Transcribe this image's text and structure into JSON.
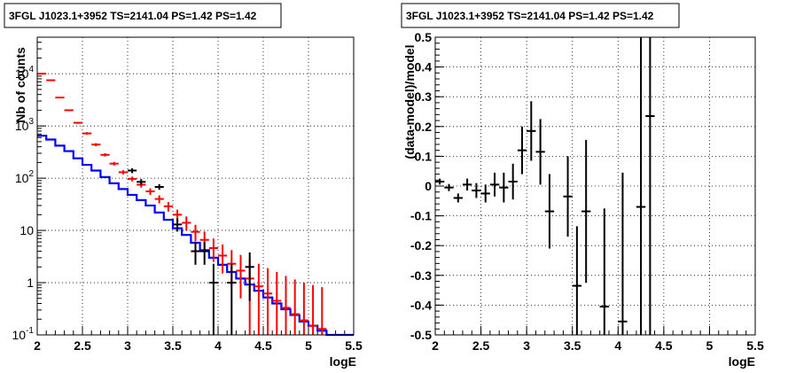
{
  "chart_data": [
    {
      "type": "line",
      "title": "3FGL J1023.1+3952 TS=2141.04 PS=1.42 PS=1.42",
      "xlabel": "logE",
      "ylabel": "Nb of counts",
      "xlim": [
        2,
        5.5
      ],
      "ylim": [
        0.1,
        50000
      ],
      "y_scale": "log",
      "grid": true,
      "x_ticks": [
        "2",
        "2.5",
        "3",
        "3.5",
        "4",
        "4.5",
        "5",
        "5.5"
      ],
      "y_ticks": [
        {
          "value": 0.1,
          "label": "10",
          "exp": "-1"
        },
        {
          "value": 1,
          "label": "1",
          "exp": ""
        },
        {
          "value": 10,
          "label": "10",
          "exp": ""
        },
        {
          "value": 100,
          "label": "10",
          "exp": "2"
        },
        {
          "value": 1000,
          "label": "10",
          "exp": "3"
        },
        {
          "value": 10000,
          "label": "10",
          "exp": "4"
        }
      ],
      "bin_edges": [
        2.0,
        2.1,
        2.2,
        2.3,
        2.4,
        2.5,
        2.6,
        2.7,
        2.8,
        2.9,
        3.0,
        3.1,
        3.2,
        3.3,
        3.4,
        3.5,
        3.6,
        3.7,
        3.8,
        3.9,
        4.0,
        4.1,
        4.2,
        4.3,
        4.4,
        4.5,
        4.6,
        4.7,
        4.8,
        4.9,
        5.0,
        5.1,
        5.2,
        5.3,
        5.4,
        5.5
      ],
      "series": [
        {
          "kind": "step",
          "color": "#0000ff",
          "values": [
            650,
            550,
            420,
            330,
            240,
            180,
            140,
            105,
            80,
            62,
            48,
            38,
            30,
            22,
            16,
            11,
            8.2,
            5.8,
            4.2,
            3.0,
            2.2,
            1.6,
            1.2,
            0.92,
            0.7,
            0.52,
            0.4,
            0.31,
            0.24,
            0.18,
            0.15,
            0.12,
            0.1,
            0.1,
            0.1
          ]
        },
        {
          "kind": "errorbars",
          "color": "#ff0000",
          "x": [
            2.05,
            2.15,
            2.25,
            2.35,
            2.45,
            2.55,
            2.65,
            2.75,
            2.85,
            2.95,
            3.05,
            3.15,
            3.25,
            3.35,
            3.45,
            3.55,
            3.65,
            3.75,
            3.85,
            3.95,
            4.05,
            4.15,
            4.25,
            4.35,
            4.45,
            4.55,
            4.65,
            4.75,
            4.85,
            4.95,
            5.05,
            5.15
          ],
          "y": [
            10000,
            7500,
            3500,
            2000,
            1150,
            720,
            440,
            280,
            190,
            130,
            97,
            75,
            56,
            40,
            29,
            20,
            14,
            9.4,
            6.6,
            4.6,
            3.3,
            2.3,
            1.7,
            1.2,
            0.85,
            0.62,
            0.45,
            0.33,
            0.25,
            0.19,
            0.15,
            0.13
          ],
          "ylow": [
            9800,
            7350,
            3400,
            1930,
            1100,
            680,
            410,
            260,
            175,
            118,
            87,
            66,
            48,
            33,
            23,
            15,
            10,
            6.2,
            4.0,
            2.5,
            1.5,
            0.9,
            0.5,
            0.1,
            0.1,
            0.1,
            0.1,
            0.1,
            0.1,
            0.1,
            0.1,
            0.1
          ],
          "yhigh": [
            10200,
            7650,
            3600,
            2070,
            1200,
            760,
            470,
            300,
            205,
            142,
            107,
            84,
            64,
            47,
            35,
            25,
            18.5,
            12.8,
            9.5,
            7.0,
            5.4,
            4.2,
            3.4,
            2.8,
            2.3,
            1.9,
            1.6,
            1.35,
            1.15,
            1.0,
            0.9,
            0.82
          ]
        },
        {
          "kind": "errorbars",
          "color": "#000000",
          "x": [
            3.05,
            3.15,
            3.35,
            3.55,
            3.75,
            3.85,
            3.95,
            4.15,
            4.35
          ],
          "y": [
            140,
            85,
            68,
            13,
            4,
            4,
            1,
            1,
            2
          ],
          "ylow": [
            125,
            75,
            60,
            9.5,
            2.2,
            2.2,
            0.1,
            0.1,
            0.45
          ],
          "yhigh": [
            155,
            96,
            77,
            17,
            6,
            6,
            2.3,
            2.3,
            3.8
          ]
        }
      ]
    },
    {
      "type": "scatter",
      "title": "3FGL J1023.1+3952 TS=2141.04 PS=1.42 PS=1.42",
      "xlabel": "logE",
      "ylabel": "(data-model)/model",
      "xlim": [
        2,
        5.5
      ],
      "ylim": [
        -0.5,
        0.5
      ],
      "grid": true,
      "x_ticks": [
        "2",
        "2.5",
        "3",
        "3.5",
        "4",
        "4.5",
        "5",
        "5.5"
      ],
      "y_ticks": [
        "-0.5",
        "-0.4",
        "-0.3",
        "-0.2",
        "-0.1",
        "0",
        "0.1",
        "0.2",
        "0.3",
        "0.4",
        "0.5"
      ],
      "y_tick_values": [
        -0.5,
        -0.4,
        -0.3,
        -0.2,
        -0.1,
        0,
        0.1,
        0.2,
        0.3,
        0.4,
        0.5
      ],
      "points": {
        "color": "#000000",
        "x": [
          2.05,
          2.15,
          2.25,
          2.35,
          2.45,
          2.55,
          2.65,
          2.75,
          2.85,
          2.95,
          3.05,
          3.15,
          3.25,
          3.45,
          3.55,
          3.65,
          3.85,
          4.05,
          4.25,
          4.35
        ],
        "y": [
          0.015,
          -0.005,
          -0.04,
          0.005,
          -0.015,
          -0.025,
          0.005,
          -0.005,
          0.015,
          0.12,
          0.185,
          0.115,
          -0.085,
          -0.035,
          -0.335,
          -0.085,
          -0.405,
          -0.455,
          -0.07,
          0.235
        ],
        "err": [
          0.01,
          0.012,
          0.015,
          0.02,
          0.025,
          0.03,
          0.04,
          0.05,
          0.06,
          0.08,
          0.1,
          0.11,
          0.125,
          0.135,
          0.2,
          0.24,
          0.33,
          0.5,
          1.0,
          1.0
        ]
      }
    }
  ]
}
